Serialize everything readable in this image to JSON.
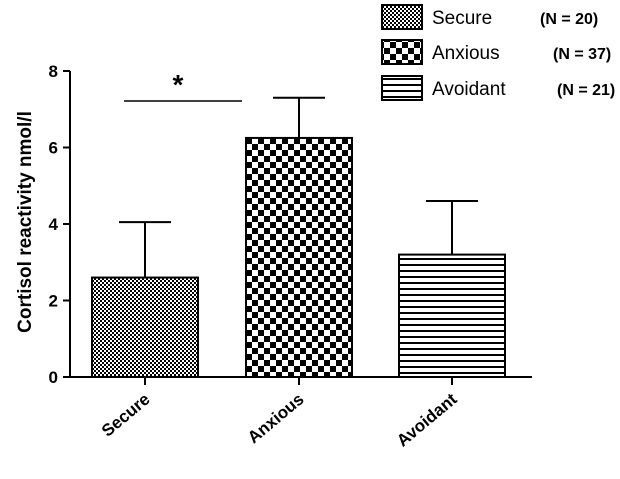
{
  "chart_data": {
    "type": "bar",
    "categories": [
      "Secure",
      "Anxious",
      "Avoidant"
    ],
    "values": [
      2.6,
      6.25,
      3.2
    ],
    "error_upper": [
      4.05,
      7.3,
      4.6
    ],
    "ylabel": "Cortisol reactivity nmol/l",
    "xlabel": "",
    "ylim": [
      0,
      8
    ],
    "yticks": [
      "0",
      "2",
      "4",
      "6",
      "8"
    ],
    "legend": [
      {
        "name": "Secure",
        "n": "(N = 20)"
      },
      {
        "name": "Anxious",
        "n": "(N = 37)"
      },
      {
        "name": "Avoidant",
        "n": "(N = 21)"
      }
    ],
    "legend_position": "top-right",
    "grid": false,
    "significance": {
      "between": [
        "Secure",
        "Anxious"
      ],
      "label": "*"
    }
  }
}
